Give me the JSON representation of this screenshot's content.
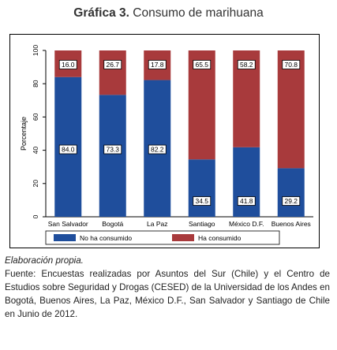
{
  "figure": {
    "title_number": "Gráfica 3.",
    "title_text": "Consumo de marihuana"
  },
  "chart_data": {
    "type": "bar",
    "stacked": true,
    "categories": [
      "San Salvador",
      "Bogotá",
      "La Paz",
      "Santiago",
      "México D.F.",
      "Buenos Aires"
    ],
    "series": [
      {
        "name": "No ha consumido",
        "color": "#1f4e9c",
        "values": [
          84.0,
          73.3,
          82.2,
          34.5,
          41.8,
          29.2
        ],
        "labels": [
          "84.0",
          "73.3",
          "82.2",
          "34.5",
          "41.8",
          "29.2"
        ]
      },
      {
        "name": "Ha consumido",
        "color": "#a83a3c",
        "values": [
          16.0,
          26.7,
          17.8,
          65.5,
          58.2,
          70.8
        ],
        "labels": [
          "16.0",
          "26.7",
          "17.8",
          "65.5",
          "58.2",
          "70.8"
        ]
      }
    ],
    "ylabel": "Porcentaje",
    "xlabel": "",
    "ylim": [
      0,
      100
    ],
    "yticks": [
      "0",
      "20",
      "40",
      "60",
      "80",
      "100"
    ],
    "legend_position": "bottom",
    "grid": false
  },
  "notes": {
    "source_label": "Elaboración propia.",
    "source_text": "Fuente: Encuestas realizadas por Asuntos del Sur (Chile) y el Centro de Estudios sobre Seguridad y Drogas (CESED) de la Universidad de los Andes en Bogotá, Buenos Aires, La Paz,  México D.F., San Salvador y Santiago de Chile en Junio de 2012."
  }
}
